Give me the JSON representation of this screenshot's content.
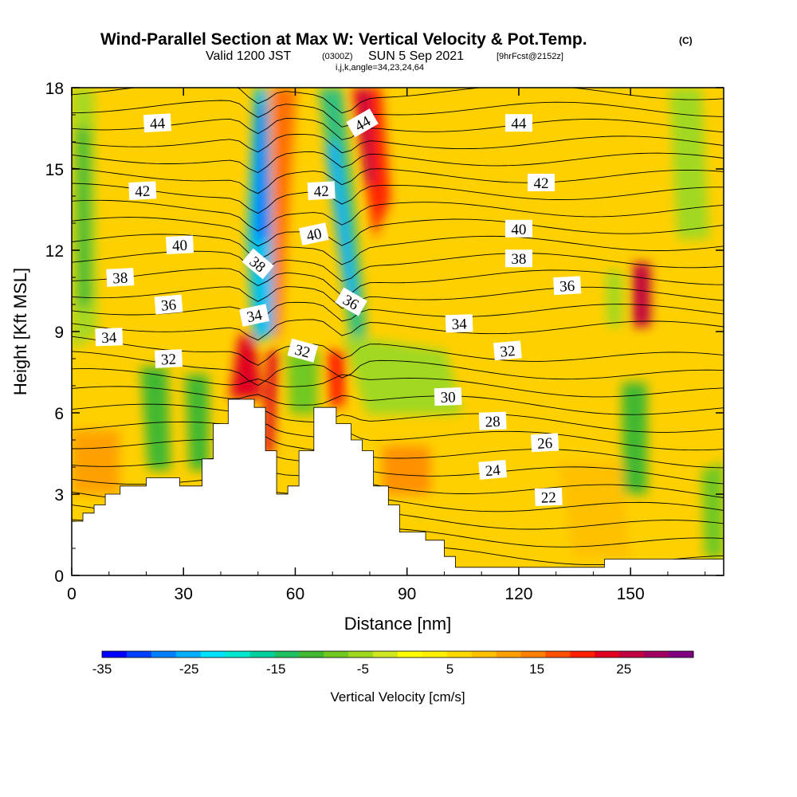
{
  "title": {
    "main": "Wind-Parallel Section at Max W: Vertical Velocity & Pot.Temp.",
    "main_suffix": "(C)",
    "valid_prefix": "Valid 1200 JST",
    "valid_zone": "(0300Z)",
    "valid_date": "SUN 5 Sep 2021",
    "forecast": "[9hrFcst@2152z]",
    "indices": "i,j,k,angle=34,23,24,64"
  },
  "chart_data": {
    "type": "heatmap",
    "overlay": "contour",
    "xlabel": "Distance [nm]",
    "ylabel": "Height [Kft MSL]",
    "xlim": [
      0,
      175
    ],
    "ylim": [
      0,
      18
    ],
    "x_ticks": [
      0,
      30,
      60,
      90,
      120,
      150
    ],
    "y_ticks": [
      0,
      3,
      6,
      9,
      12,
      15,
      18
    ],
    "colorbar": {
      "label": "Vertical Velocity [cm/s]",
      "ticks": [
        -35,
        -25,
        -15,
        -5,
        5,
        15,
        25
      ],
      "min": -35,
      "max": 33,
      "colors": [
        "#0000ff",
        "#0040ff",
        "#0080ff",
        "#00b0ff",
        "#00e0ff",
        "#00e8d0",
        "#00d0a0",
        "#20c060",
        "#40b830",
        "#70c820",
        "#a0d820",
        "#d0e820",
        "#ffff00",
        "#fff000",
        "#ffd800",
        "#ffc000",
        "#ffa000",
        "#ff8000",
        "#ff5000",
        "#ff2000",
        "#e00020",
        "#c00040",
        "#a00060",
        "#800080"
      ]
    },
    "terrain_profile": [
      [
        0,
        2
      ],
      [
        3,
        2
      ],
      [
        3,
        2.3
      ],
      [
        6,
        2.3
      ],
      [
        6,
        2.6
      ],
      [
        9,
        2.6
      ],
      [
        9,
        3
      ],
      [
        13,
        3
      ],
      [
        13,
        3.3
      ],
      [
        20,
        3.3
      ],
      [
        20,
        3.6
      ],
      [
        29,
        3.6
      ],
      [
        29,
        3.3
      ],
      [
        35,
        3.3
      ],
      [
        35,
        4.3
      ],
      [
        38,
        4.3
      ],
      [
        38,
        5.6
      ],
      [
        42,
        5.6
      ],
      [
        42,
        6.5
      ],
      [
        49,
        6.5
      ],
      [
        49,
        6.2
      ],
      [
        52,
        6.2
      ],
      [
        52,
        4.6
      ],
      [
        55,
        4.6
      ],
      [
        55,
        3
      ],
      [
        58,
        3
      ],
      [
        58,
        3.3
      ],
      [
        61,
        3.3
      ],
      [
        61,
        4.6
      ],
      [
        65,
        4.6
      ],
      [
        65,
        6.2
      ],
      [
        71,
        6.2
      ],
      [
        71,
        5.6
      ],
      [
        75,
        5.6
      ],
      [
        75,
        5
      ],
      [
        78,
        5
      ],
      [
        78,
        4.6
      ],
      [
        81,
        4.6
      ],
      [
        81,
        3.3
      ],
      [
        85,
        3.3
      ],
      [
        85,
        2.6
      ],
      [
        88,
        2.6
      ],
      [
        88,
        1.6
      ],
      [
        95,
        1.6
      ],
      [
        95,
        1.3
      ],
      [
        100,
        1.3
      ],
      [
        100,
        0.7
      ],
      [
        103,
        0.7
      ],
      [
        103,
        0.3
      ],
      [
        143,
        0.3
      ],
      [
        143,
        0.6
      ],
      [
        175,
        0.6
      ]
    ],
    "theta_labels": [
      {
        "text": "44",
        "x": 23,
        "y": 16.7,
        "angle": -3
      },
      {
        "text": "42",
        "x": 19,
        "y": 14.2,
        "angle": -3
      },
      {
        "text": "40",
        "x": 29,
        "y": 12.2,
        "angle": -3
      },
      {
        "text": "38",
        "x": 13,
        "y": 11.0,
        "angle": -3
      },
      {
        "text": "36",
        "x": 26,
        "y": 10.0,
        "angle": -5
      },
      {
        "text": "34",
        "x": 10,
        "y": 8.8,
        "angle": -2
      },
      {
        "text": "32",
        "x": 26,
        "y": 8.0,
        "angle": -3
      },
      {
        "text": "38",
        "x": 50,
        "y": 11.5,
        "angle": 40
      },
      {
        "text": "34",
        "x": 49,
        "y": 9.6,
        "angle": -12
      },
      {
        "text": "42",
        "x": 67,
        "y": 14.2,
        "angle": -3
      },
      {
        "text": "40",
        "x": 65,
        "y": 12.6,
        "angle": -12
      },
      {
        "text": "44",
        "x": 78,
        "y": 16.7,
        "angle": -30
      },
      {
        "text": "36",
        "x": 75,
        "y": 10.1,
        "angle": 30
      },
      {
        "text": "32",
        "x": 62,
        "y": 8.3,
        "angle": 15
      },
      {
        "text": "34",
        "x": 104,
        "y": 9.3,
        "angle": -2
      },
      {
        "text": "30",
        "x": 101,
        "y": 6.6,
        "angle": -2
      },
      {
        "text": "28",
        "x": 113,
        "y": 5.7,
        "angle": -2
      },
      {
        "text": "26",
        "x": 127,
        "y": 4.9,
        "angle": -3
      },
      {
        "text": "24",
        "x": 113,
        "y": 3.9,
        "angle": -5
      },
      {
        "text": "22",
        "x": 128,
        "y": 2.9,
        "angle": -2
      },
      {
        "text": "44",
        "x": 120,
        "y": 16.7,
        "angle": 0
      },
      {
        "text": "42",
        "x": 126,
        "y": 14.5,
        "angle": 0
      },
      {
        "text": "40",
        "x": 120,
        "y": 12.8,
        "angle": 0
      },
      {
        "text": "38",
        "x": 120,
        "y": 11.7,
        "angle": 0
      },
      {
        "text": "36",
        "x": 133,
        "y": 10.7,
        "angle": -3
      },
      {
        "text": "32",
        "x": 117,
        "y": 8.3,
        "angle": -5
      }
    ]
  }
}
